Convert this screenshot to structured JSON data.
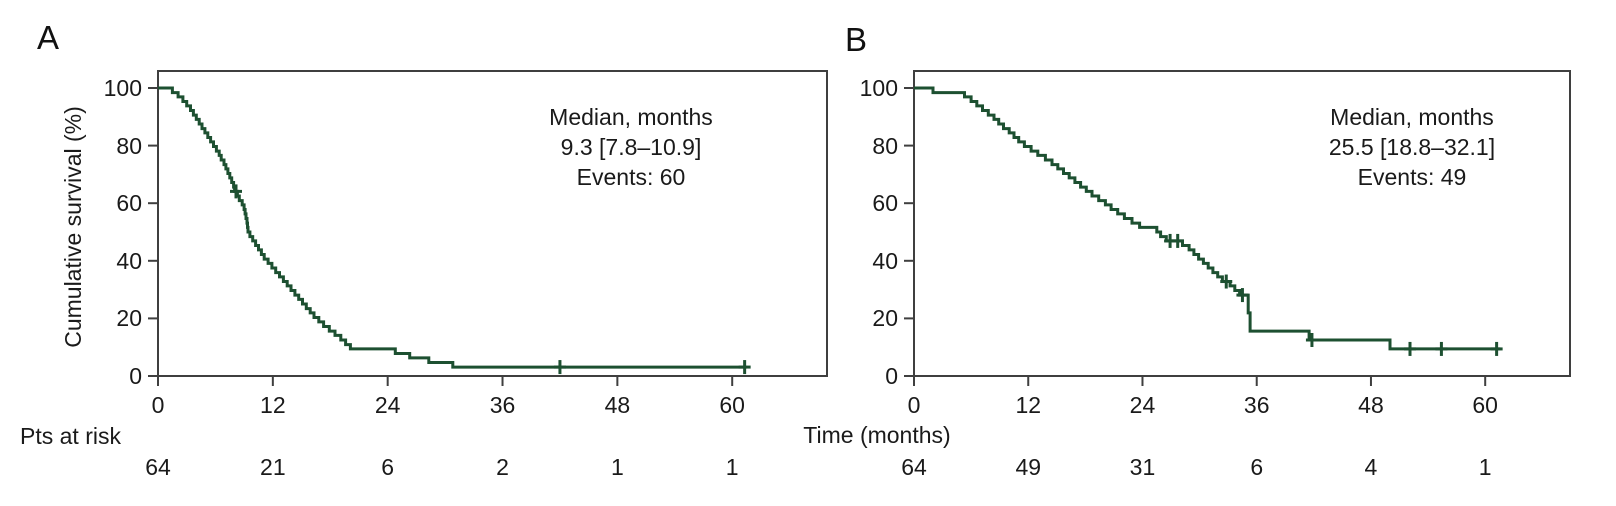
{
  "figure": {
    "xlabel": "Time (months)",
    "risk_label": "Pts at risk",
    "panels": [
      {
        "label": "A",
        "ylabel": "Cumulative survival (%)",
        "annotation_lines": [
          "Median, months",
          "9.3 [7.8–10.9]",
          "Events: 60"
        ],
        "x_tick_labels": [
          "0",
          "12",
          "24",
          "36",
          "48",
          "60"
        ],
        "y_tick_labels": [
          "100",
          "80",
          "60",
          "40",
          "20",
          "0"
        ],
        "pts_at_risk": [
          "64",
          "21",
          "6",
          "2",
          "1",
          "1"
        ]
      },
      {
        "label": "B",
        "ylabel": "",
        "annotation_lines": [
          "Median, months",
          "25.5 [18.8–32.1]",
          "Events: 49"
        ],
        "x_tick_labels": [
          "0",
          "12",
          "24",
          "36",
          "48",
          "60"
        ],
        "y_tick_labels": [
          "100",
          "80",
          "60",
          "40",
          "20",
          "0"
        ],
        "pts_at_risk": [
          "64",
          "49",
          "31",
          "6",
          "4",
          "1"
        ]
      }
    ]
  },
  "colors": {
    "curve": "#1d5031",
    "axis": "#3f3f3f",
    "text": "#1a1a1a",
    "background": "#ffffff"
  },
  "chart_data": [
    {
      "type": "line",
      "subtype": "kaplan-meier-step",
      "panel": "A",
      "title": "",
      "xlabel": "Time (months)",
      "ylabel": "Cumulative survival (%)",
      "xlim": [
        0,
        70
      ],
      "ylim": [
        0,
        106
      ],
      "x_ticks": [
        0,
        12,
        24,
        36,
        48,
        60
      ],
      "y_ticks": [
        0,
        20,
        40,
        60,
        80,
        100
      ],
      "median_months": 9.3,
      "ci_95": "7.8–10.9",
      "events": 60,
      "n_start": 64,
      "pts_at_risk": {
        "times": [
          0,
          12,
          24,
          36,
          48,
          60
        ],
        "counts": [
          64,
          21,
          6,
          2,
          1,
          1
        ]
      },
      "start_survival_pct": 100,
      "steps": [
        [
          1.5,
          98.4
        ],
        [
          2.1,
          96.9
        ],
        [
          2.6,
          95.3
        ],
        [
          3.0,
          93.8
        ],
        [
          3.4,
          92.2
        ],
        [
          3.7,
          90.6
        ],
        [
          4.0,
          89.1
        ],
        [
          4.3,
          87.5
        ],
        [
          4.6,
          85.9
        ],
        [
          4.9,
          84.4
        ],
        [
          5.2,
          82.8
        ],
        [
          5.5,
          81.3
        ],
        [
          5.8,
          79.7
        ],
        [
          6.1,
          78.1
        ],
        [
          6.4,
          76.6
        ],
        [
          6.6,
          75.0
        ],
        [
          6.9,
          73.4
        ],
        [
          7.1,
          71.9
        ],
        [
          7.3,
          70.3
        ],
        [
          7.5,
          68.8
        ],
        [
          7.7,
          67.2
        ],
        [
          7.9,
          65.6
        ],
        [
          8.0,
          64.1
        ],
        [
          8.3,
          62.5
        ],
        [
          8.5,
          60.9
        ],
        [
          8.8,
          59.4
        ],
        [
          9.0,
          57.8
        ],
        [
          9.1,
          56.3
        ],
        [
          9.2,
          54.7
        ],
        [
          9.3,
          53.1
        ],
        [
          9.35,
          51.6
        ],
        [
          9.4,
          50.0
        ],
        [
          9.6,
          48.4
        ],
        [
          9.9,
          46.9
        ],
        [
          10.2,
          45.3
        ],
        [
          10.5,
          43.8
        ],
        [
          10.8,
          42.2
        ],
        [
          11.1,
          40.6
        ],
        [
          11.5,
          39.1
        ],
        [
          11.9,
          37.5
        ],
        [
          12.3,
          35.9
        ],
        [
          12.7,
          34.4
        ],
        [
          13.1,
          32.8
        ],
        [
          13.5,
          31.3
        ],
        [
          13.9,
          29.7
        ],
        [
          14.3,
          28.1
        ],
        [
          14.7,
          26.6
        ],
        [
          15.1,
          25.0
        ],
        [
          15.5,
          23.4
        ],
        [
          15.9,
          21.9
        ],
        [
          16.3,
          20.3
        ],
        [
          16.8,
          18.8
        ],
        [
          17.3,
          17.2
        ],
        [
          17.9,
          15.6
        ],
        [
          18.5,
          14.1
        ],
        [
          19.1,
          12.5
        ],
        [
          19.6,
          10.9
        ],
        [
          20.1,
          9.4
        ],
        [
          24.8,
          7.8
        ],
        [
          26.3,
          6.3
        ],
        [
          28.3,
          4.7
        ],
        [
          30.8,
          3.1
        ]
      ],
      "censor_marks": [
        [
          8.15,
          64.1
        ],
        [
          42.0,
          3.1
        ],
        [
          61.3,
          3.1
        ]
      ],
      "end_time": 61.5
    },
    {
      "type": "line",
      "subtype": "kaplan-meier-step",
      "panel": "B",
      "title": "",
      "xlabel": "Time (months)",
      "ylabel": "Cumulative survival (%)",
      "xlim": [
        0,
        69
      ],
      "ylim": [
        0,
        106
      ],
      "x_ticks": [
        0,
        12,
        24,
        36,
        48,
        60
      ],
      "y_ticks": [
        0,
        20,
        40,
        60,
        80,
        100
      ],
      "median_months": 25.5,
      "ci_95": "18.8–32.1",
      "events": 49,
      "n_start": 64,
      "pts_at_risk": {
        "times": [
          0,
          12,
          24,
          36,
          48,
          60
        ],
        "counts": [
          64,
          49,
          31,
          6,
          4,
          1
        ]
      },
      "start_survival_pct": 100,
      "steps": [
        [
          2.0,
          98.4
        ],
        [
          5.3,
          96.9
        ],
        [
          6.0,
          95.3
        ],
        [
          6.6,
          93.8
        ],
        [
          7.2,
          92.2
        ],
        [
          7.8,
          90.6
        ],
        [
          8.4,
          89.1
        ],
        [
          8.9,
          87.5
        ],
        [
          9.4,
          85.9
        ],
        [
          10.0,
          84.4
        ],
        [
          10.5,
          82.8
        ],
        [
          11.0,
          81.3
        ],
        [
          11.6,
          79.7
        ],
        [
          12.3,
          78.1
        ],
        [
          13.0,
          76.6
        ],
        [
          13.8,
          75.0
        ],
        [
          14.5,
          73.4
        ],
        [
          15.1,
          71.9
        ],
        [
          15.7,
          70.3
        ],
        [
          16.3,
          68.8
        ],
        [
          16.9,
          67.2
        ],
        [
          17.5,
          65.6
        ],
        [
          18.1,
          64.1
        ],
        [
          18.7,
          62.5
        ],
        [
          19.4,
          60.9
        ],
        [
          20.1,
          59.4
        ],
        [
          20.7,
          57.8
        ],
        [
          21.4,
          56.3
        ],
        [
          22.1,
          54.7
        ],
        [
          22.9,
          53.1
        ],
        [
          23.7,
          51.6
        ],
        [
          25.5,
          50.0
        ],
        [
          25.9,
          48.4
        ],
        [
          26.5,
          46.9
        ],
        [
          28.2,
          45.3
        ],
        [
          28.9,
          43.8
        ],
        [
          29.4,
          42.2
        ],
        [
          29.9,
          40.6
        ],
        [
          30.4,
          39.1
        ],
        [
          30.9,
          37.5
        ],
        [
          31.4,
          35.9
        ],
        [
          31.9,
          34.4
        ],
        [
          32.4,
          32.8
        ],
        [
          33.2,
          31.3
        ],
        [
          33.7,
          29.7
        ],
        [
          34.2,
          28.1
        ],
        [
          35.1,
          21.9
        ],
        [
          35.3,
          15.6
        ],
        [
          41.5,
          12.5
        ],
        [
          50.0,
          9.4
        ]
      ],
      "censor_marks": [
        [
          26.9,
          46.9
        ],
        [
          27.7,
          46.9
        ],
        [
          32.8,
          32.8
        ],
        [
          34.5,
          28.1
        ],
        [
          41.8,
          12.5
        ],
        [
          52.1,
          9.4
        ],
        [
          55.4,
          9.4
        ],
        [
          61.2,
          9.4
        ]
      ],
      "end_time": 61.6
    }
  ]
}
